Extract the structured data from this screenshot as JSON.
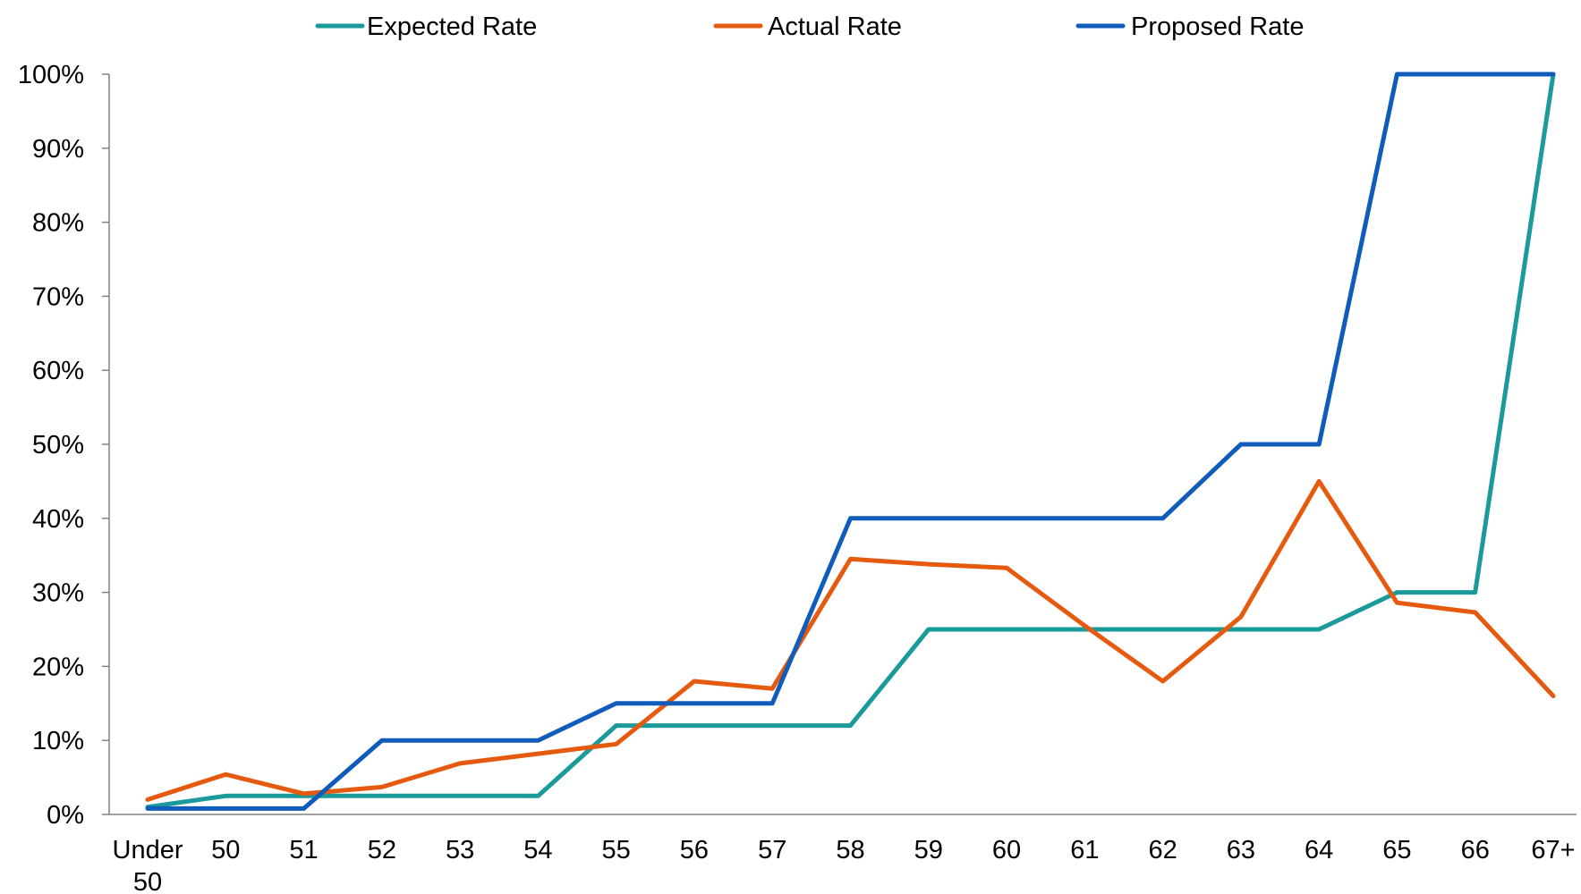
{
  "chart_data": {
    "type": "line",
    "title": "",
    "xlabel": "",
    "ylabel": "",
    "categories": [
      [
        "Under",
        "50"
      ],
      "50",
      "51",
      "52",
      "53",
      "54",
      "55",
      "56",
      "57",
      "58",
      "59",
      "60",
      "61",
      "62",
      "63",
      "64",
      "65",
      "66",
      "67+"
    ],
    "ylim": [
      0,
      100
    ],
    "yticks": [
      {
        "value": 0,
        "label": "0%"
      },
      {
        "value": 10,
        "label": "10%"
      },
      {
        "value": 20,
        "label": "20%"
      },
      {
        "value": 30,
        "label": "30%"
      },
      {
        "value": 40,
        "label": "40%"
      },
      {
        "value": 50,
        "label": "50%"
      },
      {
        "value": 60,
        "label": "60%"
      },
      {
        "value": 70,
        "label": "70%"
      },
      {
        "value": 80,
        "label": "80%"
      },
      {
        "value": 90,
        "label": "90%"
      },
      {
        "value": 100,
        "label": "100%"
      }
    ],
    "grid": false,
    "legend_position": "top",
    "series": [
      {
        "name": "Expected Rate",
        "color": "#1a9a9a",
        "values": [
          1,
          2.5,
          2.5,
          2.5,
          2.5,
          2.5,
          12,
          12,
          12,
          12,
          25,
          25,
          25,
          25,
          25,
          25,
          30,
          30,
          100
        ]
      },
      {
        "name": "Actual Rate",
        "color": "#e55a0f",
        "values": [
          2,
          5.4,
          2.8,
          3.7,
          6.9,
          8.2,
          9.5,
          18,
          17,
          34.5,
          33.8,
          33.3,
          25.5,
          18,
          26.7,
          45,
          28.6,
          27.3,
          16
        ]
      },
      {
        "name": "Proposed Rate",
        "color": "#0f5cba",
        "values": [
          0.8,
          0.8,
          0.8,
          10,
          10,
          10,
          15,
          15,
          15,
          40,
          40,
          40,
          40,
          40,
          50,
          50,
          100,
          100,
          100
        ]
      }
    ]
  }
}
